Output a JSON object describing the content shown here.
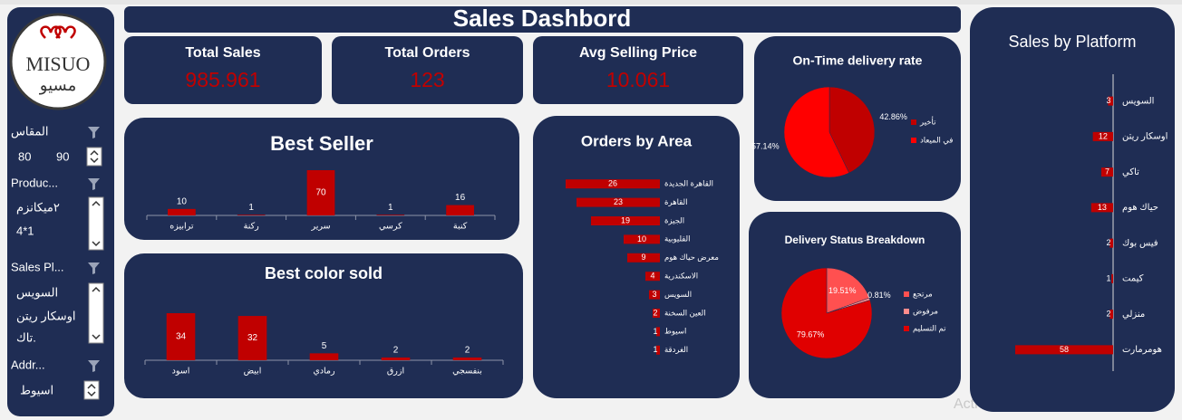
{
  "title": "Sales Dashbord",
  "logo": {
    "latin": "MISUO",
    "arabic": "مسيو"
  },
  "kpis": [
    {
      "label": "Total Sales",
      "value": 985.961
    },
    {
      "label": "Total Orders",
      "value": 123
    },
    {
      "label": "Avg Selling Price",
      "value": 10.061
    }
  ],
  "slicers": [
    {
      "title": "المقاس",
      "items": [
        80,
        90
      ]
    },
    {
      "title": "Produc...",
      "items": [
        "٢ميكانزم",
        "4*1"
      ]
    },
    {
      "title": "Sales Pl...",
      "items": [
        "السويس",
        "اوسكار ريتن",
        "تاك."
      ]
    },
    {
      "title": "Addr...",
      "items": [
        "اسيوط"
      ]
    }
  ],
  "watermark": "Activate Windows",
  "chart_data": [
    {
      "type": "bar",
      "title": "Best Seller",
      "categories": [
        "ترابيزه",
        "ركنة",
        "سرير",
        "كرسي",
        "كنبة"
      ],
      "values": [
        10,
        1,
        70,
        1,
        16
      ],
      "color": "#c00000"
    },
    {
      "type": "bar",
      "title": "Best color sold",
      "categories": [
        "اسود",
        "ابيض",
        "رمادي",
        "ازرق",
        "بنفسجي"
      ],
      "values": [
        34,
        32,
        5,
        2,
        2
      ],
      "color": "#c00000"
    },
    {
      "type": "bar",
      "orientation": "horizontal",
      "title": "Orders by Area",
      "categories": [
        "القاهرة الجديدة",
        "القاهرة",
        "الجيزة",
        "القليوبية",
        "معرض حياك هوم",
        "الاسكندرية",
        "السويس",
        "العين السخنة",
        "اسيوط",
        "الغردقة"
      ],
      "values": [
        26,
        23,
        19,
        10,
        9,
        4,
        3,
        2,
        1,
        1
      ],
      "color": "#c00000"
    },
    {
      "type": "pie",
      "title": "On-Time delivery rate",
      "categories": [
        "تأخير",
        "في الميعاد"
      ],
      "values": [
        42.86,
        57.14
      ],
      "value_labels": [
        "42.86%",
        "57.14%"
      ],
      "colors": [
        "#c00000",
        "#ff0000"
      ]
    },
    {
      "type": "pie",
      "title": "Delivery Status Breakdown",
      "categories": [
        "مرتجع",
        "مرفوض",
        "تم التسليم"
      ],
      "values": [
        19.51,
        0.81,
        79.67
      ],
      "value_labels": [
        "19.51%",
        "0.81%",
        "79.67%"
      ],
      "colors": [
        "#ff5050",
        "#ff8c8c",
        "#e00000"
      ]
    },
    {
      "type": "bar",
      "orientation": "horizontal",
      "title": "Sales by Platform",
      "categories": [
        "السويس",
        "اوسكار ريتن",
        "تاكي",
        "حياك هوم",
        "فيس بوك",
        "كيمت",
        "منزلي",
        "هومرمارت"
      ],
      "values": [
        3,
        12,
        7,
        13,
        2,
        1,
        2,
        58
      ],
      "color": "#c00000"
    }
  ]
}
